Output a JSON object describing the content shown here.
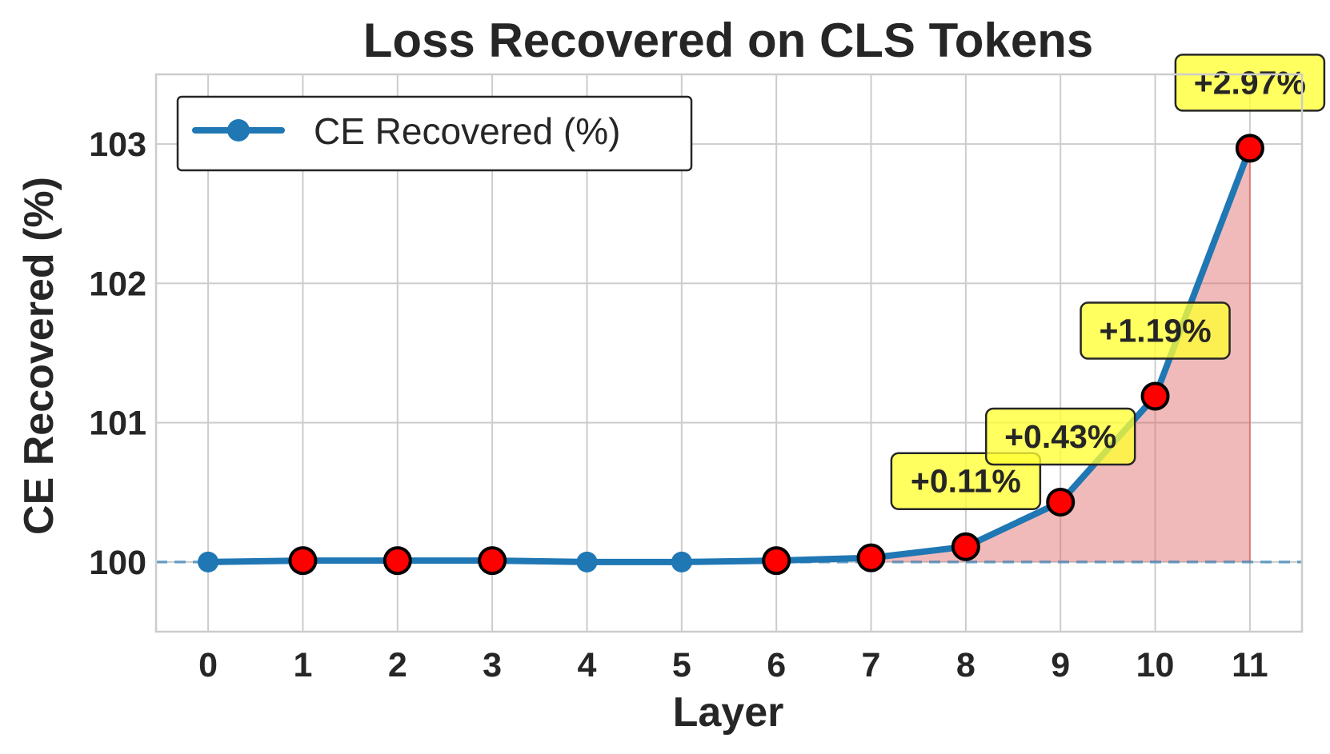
{
  "chart_data": {
    "type": "line",
    "title": "Loss Recovered on CLS Tokens",
    "xlabel": "Layer",
    "ylabel": "CE Recovered (%)",
    "x": [
      0,
      1,
      2,
      3,
      4,
      5,
      6,
      7,
      8,
      9,
      10,
      11
    ],
    "xlim": [
      -0.55,
      11.55
    ],
    "ylim": [
      99.5,
      103.5
    ],
    "yticks": [
      100,
      101,
      102,
      103
    ],
    "grid": true,
    "legend_position": "top-left",
    "series": [
      {
        "name": "CE Recovered (%)",
        "color": "#1f77b4",
        "values": [
          100.0,
          100.01,
          100.01,
          100.01,
          100.0,
          100.0,
          100.01,
          100.03,
          100.11,
          100.43,
          101.19,
          102.97
        ]
      }
    ],
    "highlighted_layers": [
      1,
      2,
      3,
      6,
      7,
      8,
      9,
      10,
      11
    ],
    "highlight_color": "#ff0000",
    "baseline": 100,
    "baseline_color": "#1f77b4",
    "fill_color": "#e06666",
    "fill_from_layer": 7,
    "annotations": [
      {
        "layer": 8,
        "text": "+0.11%"
      },
      {
        "layer": 9,
        "text": "+0.43%"
      },
      {
        "layer": 10,
        "text": "+1.19%"
      },
      {
        "layer": 11,
        "text": "+2.97%"
      }
    ],
    "annotation_bg": "#ffff33"
  }
}
